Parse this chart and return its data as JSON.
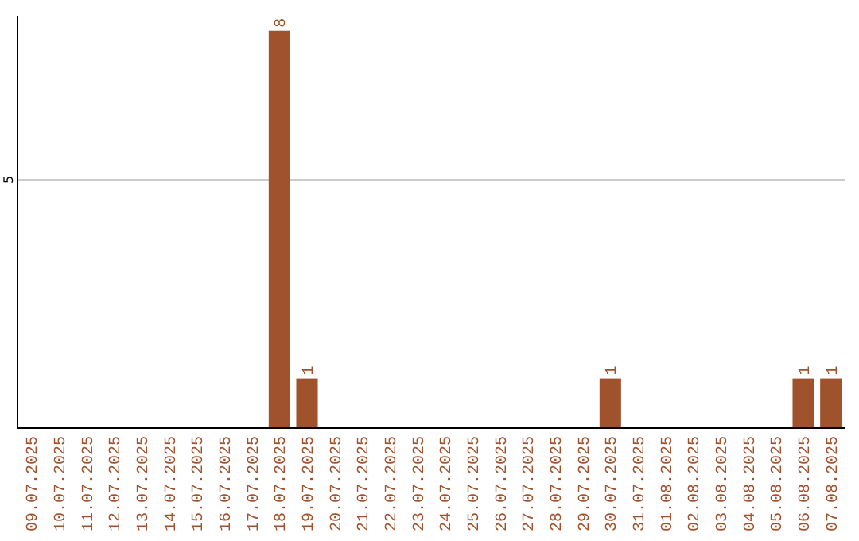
{
  "chart_data": {
    "type": "bar",
    "categories": [
      "09.07.2025",
      "10.07.2025",
      "11.07.2025",
      "12.07.2025",
      "13.07.2025",
      "14.07.2025",
      "15.07.2025",
      "16.07.2025",
      "17.07.2025",
      "18.07.2025",
      "19.07.2025",
      "20.07.2025",
      "21.07.2025",
      "22.07.2025",
      "23.07.2025",
      "24.07.2025",
      "25.07.2025",
      "26.07.2025",
      "27.07.2025",
      "28.07.2025",
      "29.07.2025",
      "30.07.2025",
      "31.07.2025",
      "01.08.2025",
      "02.08.2025",
      "03.08.2025",
      "04.08.2025",
      "05.08.2025",
      "06.08.2025",
      "07.08.2025"
    ],
    "values": [
      0,
      0,
      0,
      0,
      0,
      0,
      0,
      0,
      0,
      8,
      1,
      0,
      0,
      0,
      0,
      0,
      0,
      0,
      0,
      0,
      0,
      1,
      0,
      0,
      0,
      0,
      0,
      0,
      1,
      1
    ],
    "value_labels": [
      null,
      null,
      null,
      null,
      null,
      null,
      null,
      null,
      null,
      "8",
      "1",
      null,
      null,
      null,
      null,
      null,
      null,
      null,
      null,
      null,
      null,
      "1",
      null,
      null,
      null,
      null,
      null,
      null,
      "1",
      "1"
    ],
    "color": "#a0522d",
    "ylim": [
      0,
      8.3
    ],
    "yticks": [
      5
    ],
    "grid": "y"
  }
}
